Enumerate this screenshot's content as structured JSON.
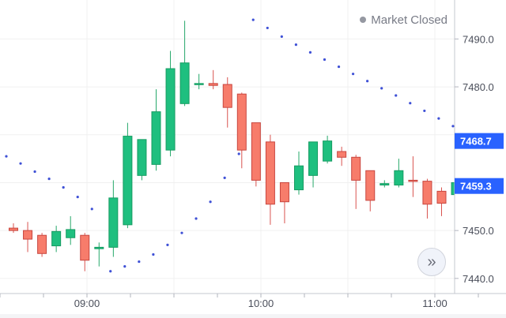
{
  "status": {
    "label": "Market Closed",
    "icon": "status-dot-icon"
  },
  "controls": {
    "scroll_to_latest_icon": "double-chevron-right-icon",
    "scroll_to_latest_glyph": "»"
  },
  "price_axis": {
    "ticks": [
      {
        "value": 7490.0,
        "label": "7490.0"
      },
      {
        "value": 7480.0,
        "label": "7480.0"
      },
      {
        "value": 7450.0,
        "label": "7450.0"
      },
      {
        "value": 7440.0,
        "label": "7440.0"
      }
    ],
    "current_price_label": "7468.7",
    "current_price": 7468.7,
    "last_price_label": "7459.3",
    "last_price": 7459.3
  },
  "time_axis": {
    "labels": [
      "09:00",
      "10:00",
      "11:00"
    ]
  },
  "colors": {
    "up": "#26a69a",
    "up_fill": "#1fbf7f",
    "down": "#ef5350",
    "down_fill": "#f77c6b",
    "psar": "#3f51d6",
    "current_price_bg": "#2962ff",
    "last_price_bg": "#2962ff",
    "grid": "#f0f0f0"
  },
  "chart_data": {
    "type": "candlestick",
    "y_range": [
      7437.5,
      7495.5
    ],
    "candles": [
      {
        "o": 7450.5,
        "h": 7451.5,
        "l": 7449.5,
        "c": 7450.0
      },
      {
        "o": 7450.0,
        "h": 7451.8,
        "l": 7445.5,
        "c": 7448.2
      },
      {
        "o": 7449.0,
        "h": 7449.5,
        "l": 7444.5,
        "c": 7445.2
      },
      {
        "o": 7446.8,
        "h": 7451.0,
        "l": 7445.5,
        "c": 7449.8
      },
      {
        "o": 7448.5,
        "h": 7453.0,
        "l": 7447.0,
        "c": 7450.2
      },
      {
        "o": 7449.0,
        "h": 7449.5,
        "l": 7441.5,
        "c": 7443.8
      },
      {
        "o": 7446.2,
        "h": 7447.5,
        "l": 7442.5,
        "c": 7446.5
      },
      {
        "o": 7446.5,
        "h": 7460.5,
        "l": 7444.5,
        "c": 7456.8
      },
      {
        "o": 7451.2,
        "h": 7472.5,
        "l": 7450.5,
        "c": 7469.7
      },
      {
        "o": 7461.5,
        "h": 7468.5,
        "l": 7460.5,
        "c": 7469.0
      },
      {
        "o": 7463.8,
        "h": 7479.5,
        "l": 7462.5,
        "c": 7474.8
      },
      {
        "o": 7466.8,
        "h": 7487.5,
        "l": 7465.5,
        "c": 7483.8
      },
      {
        "o": 7476.5,
        "h": 7493.8,
        "l": 7476.0,
        "c": 7485.0
      },
      {
        "o": 7480.7,
        "h": 7482.7,
        "l": 7479.5,
        "c": 7480.7
      },
      {
        "o": 7480.7,
        "h": 7483.5,
        "l": 7479.5,
        "c": 7480.3
      },
      {
        "o": 7480.5,
        "h": 7482.0,
        "l": 7471.5,
        "c": 7475.7
      },
      {
        "o": 7478.5,
        "h": 7478.8,
        "l": 7463.0,
        "c": 7466.8
      },
      {
        "o": 7472.5,
        "h": 7472.5,
        "l": 7459.2,
        "c": 7460.5
      },
      {
        "o": 7468.5,
        "h": 7470.0,
        "l": 7451.2,
        "c": 7455.5
      },
      {
        "o": 7460.0,
        "h": 7460.0,
        "l": 7451.5,
        "c": 7456.0
      },
      {
        "o": 7458.5,
        "h": 7466.5,
        "l": 7457.5,
        "c": 7463.5
      },
      {
        "o": 7461.5,
        "h": 7468.0,
        "l": 7459.0,
        "c": 7468.5
      },
      {
        "o": 7464.5,
        "h": 7469.8,
        "l": 7464.0,
        "c": 7468.7
      },
      {
        "o": 7466.5,
        "h": 7467.5,
        "l": 7463.5,
        "c": 7465.3
      },
      {
        "o": 7465.3,
        "h": 7465.8,
        "l": 7454.5,
        "c": 7460.5
      },
      {
        "o": 7462.5,
        "h": 7462.5,
        "l": 7454.0,
        "c": 7456.3
      },
      {
        "o": 7459.5,
        "h": 7460.5,
        "l": 7459.0,
        "c": 7459.8
      },
      {
        "o": 7459.5,
        "h": 7465.0,
        "l": 7459.0,
        "c": 7462.5
      },
      {
        "o": 7460.5,
        "h": 7465.5,
        "l": 7457.0,
        "c": 7460.3
      },
      {
        "o": 7460.3,
        "h": 7460.8,
        "l": 7452.5,
        "c": 7455.5
      },
      {
        "o": 7458.2,
        "h": 7459.0,
        "l": 7453.0,
        "c": 7455.7
      },
      {
        "o": 7457.5,
        "h": 7463.8,
        "l": 7455.5,
        "c": 7460.0
      }
    ],
    "psar": [
      {
        "i": -0.5,
        "v": 7465.5
      },
      {
        "i": 0.5,
        "v": 7464.0
      },
      {
        "i": 1.5,
        "v": 7462.3
      },
      {
        "i": 2.5,
        "v": 7460.8
      },
      {
        "i": 3.5,
        "v": 7459.0
      },
      {
        "i": 4.5,
        "v": 7457.0
      },
      {
        "i": 5.5,
        "v": 7454.5
      },
      {
        "i": 6.8,
        "v": 7441.5
      },
      {
        "i": 7.8,
        "v": 7442.5
      },
      {
        "i": 8.8,
        "v": 7443.5
      },
      {
        "i": 9.8,
        "v": 7445.0
      },
      {
        "i": 10.8,
        "v": 7447.0
      },
      {
        "i": 11.8,
        "v": 7449.5
      },
      {
        "i": 12.8,
        "v": 7452.5
      },
      {
        "i": 13.8,
        "v": 7456.0
      },
      {
        "i": 14.8,
        "v": 7461.0
      },
      {
        "i": 15.8,
        "v": 7466.0
      },
      {
        "i": 16.8,
        "v": 7494.0
      },
      {
        "i": 17.8,
        "v": 7492.3
      },
      {
        "i": 18.8,
        "v": 7490.5
      },
      {
        "i": 19.8,
        "v": 7488.8
      },
      {
        "i": 20.8,
        "v": 7487.2
      },
      {
        "i": 21.8,
        "v": 7485.7
      },
      {
        "i": 22.8,
        "v": 7484.2
      },
      {
        "i": 23.8,
        "v": 7482.7
      },
      {
        "i": 24.8,
        "v": 7481.2
      },
      {
        "i": 25.8,
        "v": 7479.7
      },
      {
        "i": 26.8,
        "v": 7478.2
      },
      {
        "i": 27.8,
        "v": 7476.6
      },
      {
        "i": 28.8,
        "v": 7475.0
      },
      {
        "i": 29.8,
        "v": 7473.4
      },
      {
        "i": 30.8,
        "v": 7471.8
      }
    ]
  }
}
